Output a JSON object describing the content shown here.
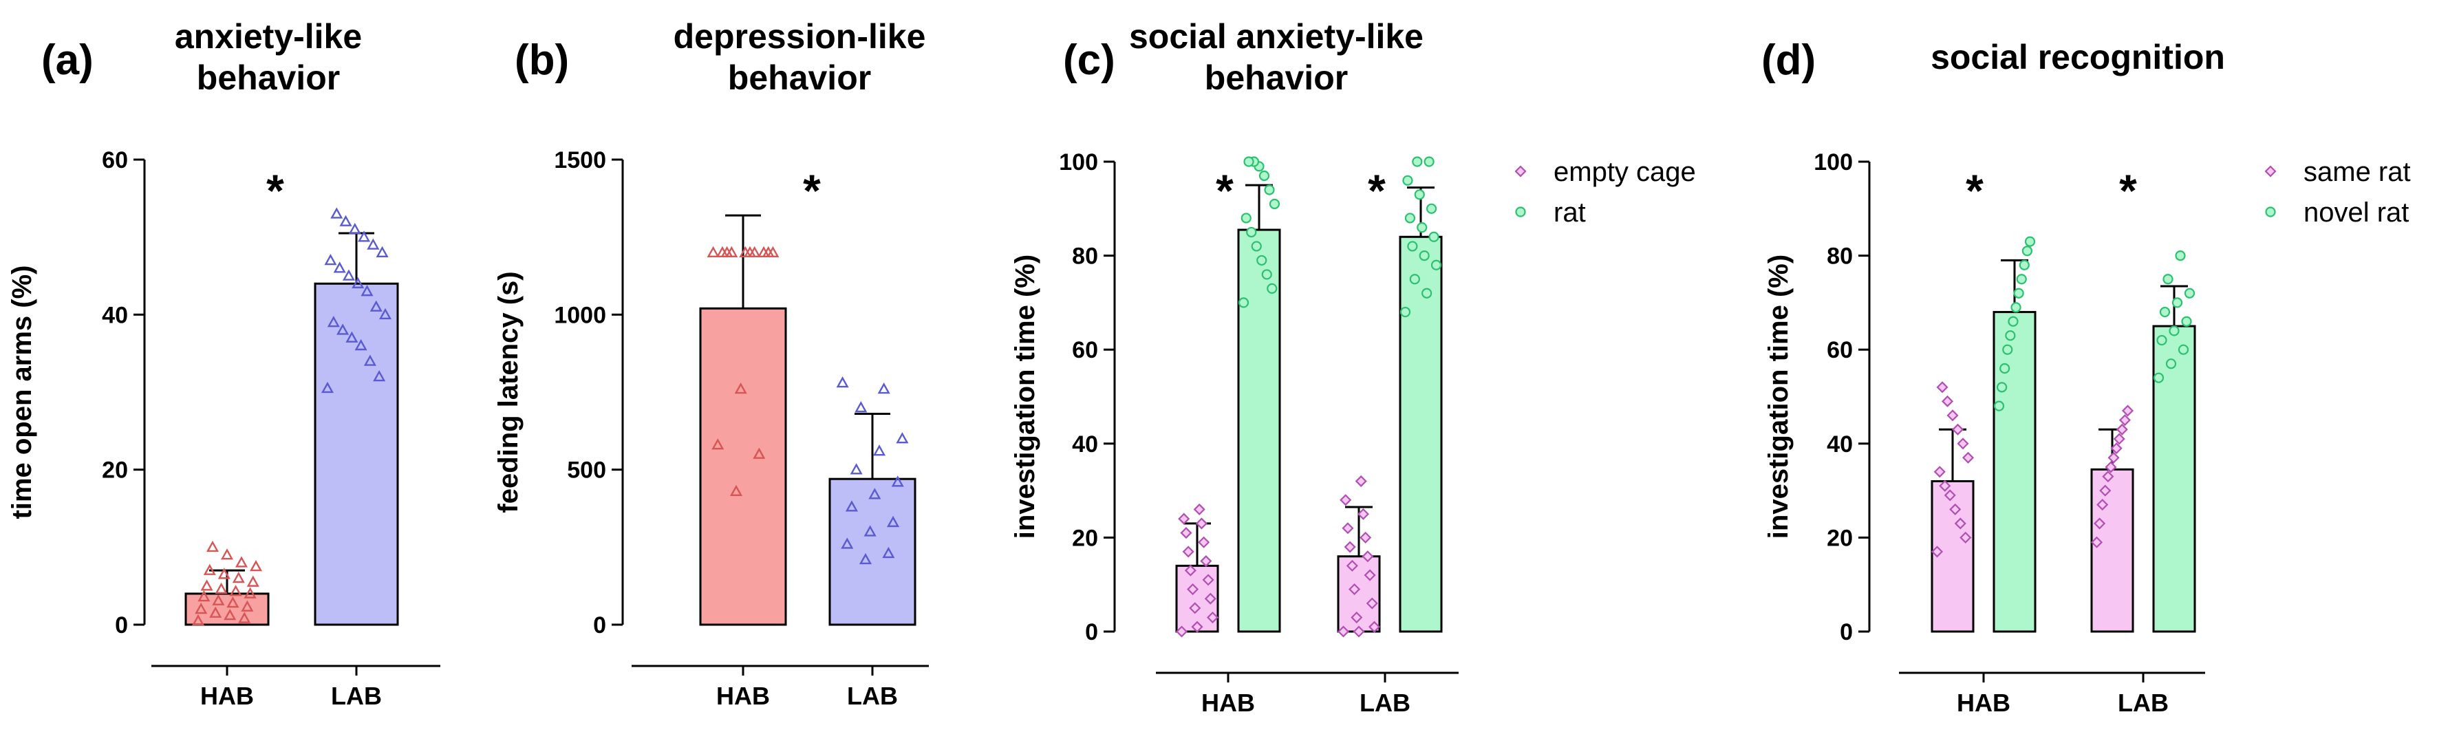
{
  "chart_data": [
    {
      "type": "bar",
      "panel": "(a)",
      "title_lines": [
        "anxiety-like",
        "behavior"
      ],
      "ylabel": "time open arms (%)",
      "ylim": [
        0,
        60
      ],
      "yticks": [
        0,
        20,
        40,
        60
      ],
      "categories": [
        "HAB",
        "LAB"
      ],
      "significance": [
        "*"
      ],
      "series": [
        {
          "name": "",
          "marker": "triangle",
          "values": [
            4,
            44
          ],
          "errors": [
            3,
            6.5
          ],
          "colors": [
            "#f7a1a1",
            "#bdbdf7"
          ],
          "point_colors": [
            "#d85555",
            "#5a5ad2"
          ],
          "points": [
            [
              0.5,
              0.8,
              1.2,
              1.5,
              2,
              2.3,
              2.8,
              3.1,
              3.6,
              4,
              4.3,
              4.6,
              5,
              5.5,
              6,
              6.5,
              7,
              7.5,
              8,
              9,
              10
            ],
            [
              30.5,
              32,
              34,
              36,
              37,
              38,
              39,
              40,
              41,
              43,
              44,
              45,
              46,
              47,
              48,
              49,
              50,
              51,
              52,
              53
            ]
          ]
        }
      ]
    },
    {
      "type": "bar",
      "panel": "(b)",
      "title_lines": [
        "depression-like",
        "behavior"
      ],
      "ylabel": "feeding latency (s)",
      "ylim": [
        0,
        1500
      ],
      "yticks": [
        0,
        500,
        1000,
        1500
      ],
      "categories": [
        "HAB",
        "LAB"
      ],
      "significance": [
        "*"
      ],
      "series": [
        {
          "name": "",
          "marker": "triangle",
          "values": [
            1020,
            470
          ],
          "errors": [
            300,
            210
          ],
          "colors": [
            "#f7a1a1",
            "#bdbdf7"
          ],
          "point_colors": [
            "#d85555",
            "#5a5ad2"
          ],
          "points": [
            [
              1200,
              1200,
              1200,
              1200,
              1200,
              1200,
              1200,
              1200,
              1200,
              1200,
              760,
              580,
              550,
              430
            ],
            [
              780,
              760,
              700,
              600,
              560,
              500,
              460,
              420,
              380,
              330,
              300,
              260,
              230,
              210
            ]
          ]
        }
      ]
    },
    {
      "type": "bar",
      "panel": "(c)",
      "title_lines": [
        "social anxiety-like",
        "behavior"
      ],
      "ylabel": "investigation time (%)",
      "ylim": [
        0,
        100
      ],
      "yticks": [
        0,
        20,
        40,
        60,
        80,
        100
      ],
      "categories": [
        "HAB",
        "LAB"
      ],
      "significance": [
        "*",
        "*"
      ],
      "series": [
        {
          "name": "empty cage",
          "marker": "diamond",
          "color": "#f7c6f2",
          "point_color": "#b050b0",
          "values": [
            14,
            16
          ],
          "errors": [
            9,
            10.5
          ],
          "points": [
            [
              0,
              1,
              3,
              5,
              7,
              9,
              11,
              13,
              15,
              17,
              19,
              21,
              23,
              24,
              26
            ],
            [
              0,
              0,
              1,
              3,
              6,
              9,
              12,
              14,
              16,
              18,
              20,
              22,
              25,
              28,
              32
            ]
          ]
        },
        {
          "name": "rat",
          "marker": "circle",
          "color": "#aef7cc",
          "point_color": "#2cc070",
          "values": [
            85.5,
            84
          ],
          "errors": [
            9.5,
            10.5
          ],
          "points": [
            [
              70,
              73,
              76,
              79,
              82,
              85,
              88,
              91,
              94,
              97,
              99,
              100,
              100
            ],
            [
              68,
              72,
              75,
              78,
              80,
              82,
              84,
              86,
              88,
              90,
              93,
              96,
              100,
              100
            ]
          ]
        }
      ]
    },
    {
      "type": "bar",
      "panel": "(d)",
      "title_lines": [
        "social recognition"
      ],
      "ylabel": "investigation time (%)",
      "ylim": [
        0,
        100
      ],
      "yticks": [
        0,
        20,
        40,
        60,
        80,
        100
      ],
      "categories": [
        "HAB",
        "LAB"
      ],
      "significance": [
        "*",
        "*"
      ],
      "series": [
        {
          "name": "same rat",
          "marker": "diamond",
          "color": "#f7c6f2",
          "point_color": "#b050b0",
          "values": [
            32,
            34.5
          ],
          "errors": [
            11,
            8.5
          ],
          "points": [
            [
              17,
              20,
              23,
              26,
              29,
              31,
              34,
              37,
              40,
              43,
              46,
              49,
              52
            ],
            [
              19,
              23,
              27,
              30,
              33,
              35,
              37,
              39,
              41,
              43,
              45,
              47
            ]
          ]
        },
        {
          "name": "novel rat",
          "marker": "circle",
          "color": "#aef7cc",
          "point_color": "#2cc070",
          "values": [
            68,
            65
          ],
          "errors": [
            11,
            8.5
          ],
          "points": [
            [
              48,
              52,
              56,
              60,
              63,
              66,
              69,
              72,
              75,
              78,
              81,
              83
            ],
            [
              54,
              57,
              60,
              62,
              64,
              66,
              68,
              70,
              72,
              75,
              80
            ]
          ]
        }
      ]
    }
  ]
}
